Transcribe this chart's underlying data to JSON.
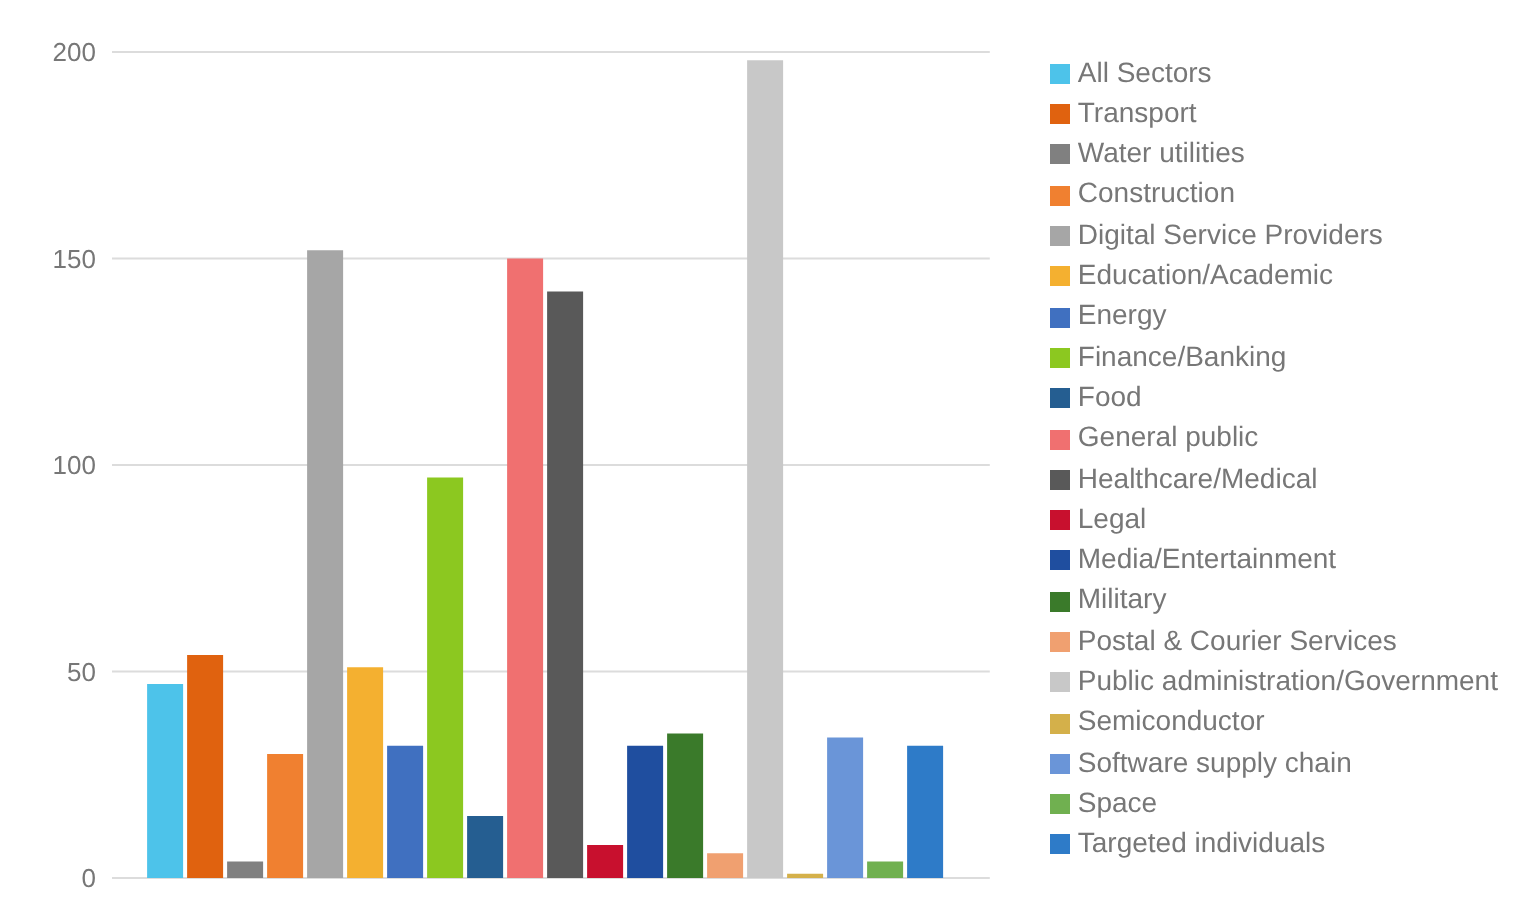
{
  "chart_data": {
    "type": "bar",
    "categories": [
      null
    ],
    "ylim": [
      0,
      200
    ],
    "yticks": [
      0,
      50,
      100,
      150,
      200
    ],
    "grid": "y",
    "legend": "right",
    "tick_labels": "y",
    "series": [
      {
        "name": "All Sectors",
        "color": "#4dc3ea",
        "values": [
          47
        ]
      },
      {
        "name": "Transport",
        "color": "#e0620f",
        "values": [
          54
        ]
      },
      {
        "name": "Water utilities",
        "color": "#808080",
        "values": [
          4
        ]
      },
      {
        "name": "Construction",
        "color": "#f08030",
        "values": [
          30
        ]
      },
      {
        "name": "Digital Service Providers",
        "color": "#a6a6a6",
        "values": [
          152
        ]
      },
      {
        "name": "Education/Academic",
        "color": "#f4b030",
        "values": [
          51
        ]
      },
      {
        "name": "Energy",
        "color": "#4070c0",
        "values": [
          32
        ]
      },
      {
        "name": "Finance/Banking",
        "color": "#8cc820",
        "values": [
          97
        ]
      },
      {
        "name": "Food",
        "color": "#255e91",
        "values": [
          15
        ]
      },
      {
        "name": "General public",
        "color": "#f07070",
        "values": [
          150
        ]
      },
      {
        "name": "Healthcare/Medical",
        "color": "#595959",
        "values": [
          142
        ]
      },
      {
        "name": "Legal",
        "color": "#c8102e",
        "values": [
          8
        ]
      },
      {
        "name": "Media/Entertainment",
        "color": "#1f4e9f",
        "values": [
          32
        ]
      },
      {
        "name": "Military",
        "color": "#3a7a2a",
        "values": [
          35
        ]
      },
      {
        "name": "Postal & Courier Services",
        "color": "#f0a070",
        "values": [
          6
        ]
      },
      {
        "name": "Public administration/Government",
        "color": "#c8c8c8",
        "values": [
          198
        ]
      },
      {
        "name": "Semiconductor",
        "color": "#d4b04a",
        "values": [
          1
        ]
      },
      {
        "name": "Software supply chain",
        "color": "#6a95d8",
        "values": [
          34
        ]
      },
      {
        "name": "Space",
        "color": "#70b050",
        "values": [
          4
        ]
      },
      {
        "name": "Targeted individuals",
        "color": "#2e7bc8",
        "values": [
          32
        ]
      }
    ]
  }
}
